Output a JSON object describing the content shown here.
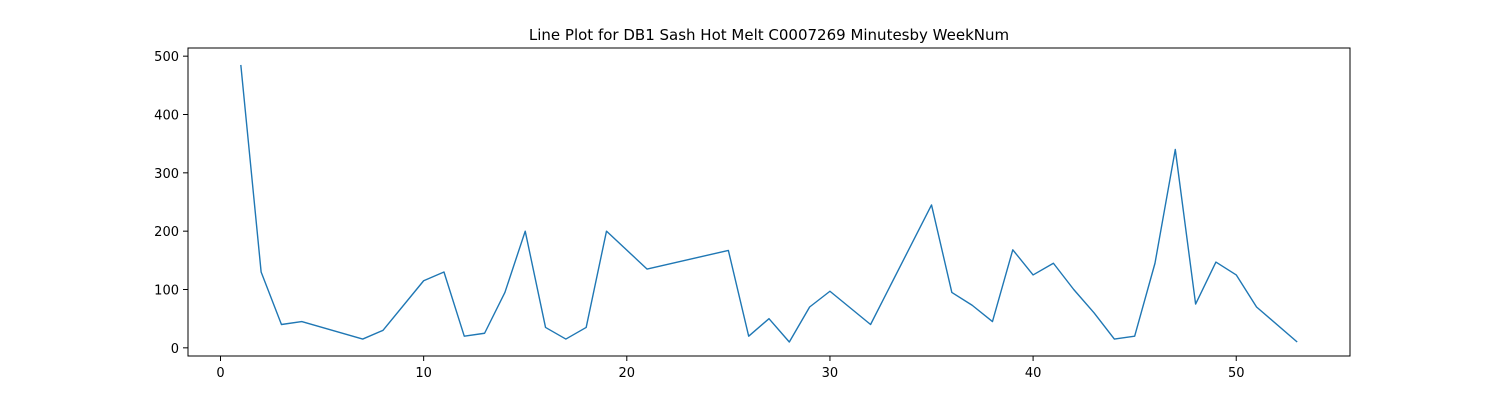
{
  "chart_data": {
    "type": "line",
    "title": "Line Plot for DB1 Sash Hot Melt C0007269 Minutesby WeekNum",
    "xlabel": "",
    "ylabel": "",
    "xlim": [
      -1.6,
      55.6
    ],
    "ylim": [
      -14,
      514
    ],
    "grid": false,
    "x_ticks": [
      0,
      10,
      20,
      30,
      40,
      50
    ],
    "y_ticks": [
      0,
      100,
      200,
      300,
      400,
      500
    ],
    "line_color": "#1f77b4",
    "series": [
      {
        "x": [
          1,
          2,
          3,
          4,
          7,
          8,
          10,
          11,
          12,
          13,
          14,
          15,
          16,
          17,
          18,
          19,
          21,
          25,
          26,
          27,
          28,
          29,
          30,
          32,
          35,
          36,
          37,
          38,
          39,
          40,
          41,
          42,
          43,
          44,
          45,
          46,
          47,
          48,
          49,
          50,
          51,
          53
        ],
        "values": [
          485,
          130,
          40,
          45,
          15,
          30,
          115,
          130,
          20,
          25,
          95,
          200,
          35,
          15,
          35,
          200,
          135,
          167,
          20,
          50,
          10,
          70,
          97,
          40,
          245,
          95,
          73,
          45,
          168,
          125,
          145,
          100,
          60,
          15,
          20,
          145,
          340,
          75,
          147,
          125,
          70,
          10
        ]
      }
    ]
  }
}
